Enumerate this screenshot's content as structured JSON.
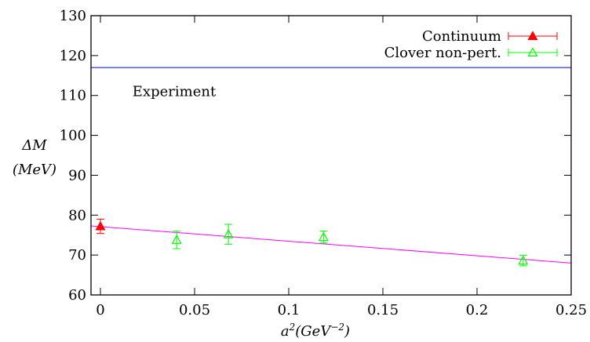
{
  "chart_data": {
    "type": "scatter",
    "xlabel_base": "a",
    "xlabel_sup": "2",
    "xlabel_rest": "(GeV",
    "xlabel_rest_sup": "−2",
    "xlabel_close": ")",
    "ylabel_line1": "ΔM",
    "ylabel_line2": "(MeV)",
    "xlim": [
      -0.005,
      0.25
    ],
    "ylim": [
      60,
      130
    ],
    "x_ticks": [
      0,
      0.05,
      0.1,
      0.15,
      0.2,
      0.25
    ],
    "x_tick_labels": [
      "0",
      "0.05",
      "0.1",
      "0.15",
      "0.2",
      "0.25"
    ],
    "y_ticks": [
      60,
      70,
      80,
      90,
      100,
      110,
      120,
      130
    ],
    "y_tick_labels": [
      "60",
      "70",
      "80",
      "90",
      "100",
      "110",
      "120",
      "130"
    ],
    "legend_position": "top-right",
    "series": [
      {
        "name": "Continuum",
        "color": "#ff0000",
        "marker": "filled-triangle",
        "points": [
          {
            "x": 0.0,
            "y": 77.2,
            "err": 1.8
          }
        ]
      },
      {
        "name": "Clover non-pert.",
        "color": "#00ff00",
        "marker": "open-triangle",
        "points": [
          {
            "x": 0.0405,
            "y": 73.8,
            "err": 2.2
          },
          {
            "x": 0.068,
            "y": 75.2,
            "err": 2.5
          },
          {
            "x": 0.1185,
            "y": 74.5,
            "err": 1.5
          },
          {
            "x": 0.2245,
            "y": 68.6,
            "err": 1.3
          }
        ]
      }
    ],
    "fit_line": {
      "color": "#ff00ff",
      "x0": -0.005,
      "y0": 77.3,
      "x1": 0.25,
      "y1": 68.0
    },
    "reference_line": {
      "color": "#0000ff",
      "y": 117.0,
      "label": "Experiment",
      "label_x": 0.017,
      "label_y": 109.8
    }
  }
}
